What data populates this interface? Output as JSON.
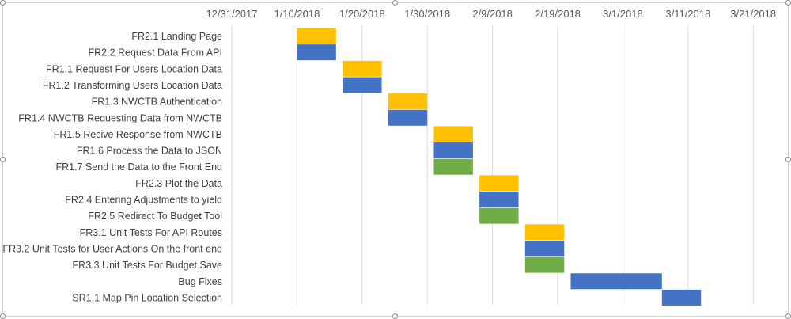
{
  "chart_data": {
    "type": "bar",
    "subtype": "gantt",
    "title": "",
    "xlabel": "",
    "ylabel": "",
    "x_axis_position": "top",
    "grid": true,
    "xlim": [
      "2017-12-31",
      "2018-03-31"
    ],
    "x_ticks": [
      "12/31/2017",
      "1/10/2018",
      "1/20/2018",
      "1/30/2018",
      "2/9/2018",
      "2/19/2018",
      "3/1/2018",
      "3/11/2018",
      "3/21/2018"
    ],
    "tick_day_offsets": [
      0,
      10,
      20,
      30,
      40,
      50,
      60,
      70,
      80
    ],
    "series_colors": {
      "yellow": "#FFC000",
      "blue": "#4472C4",
      "green": "#70AD47"
    },
    "tasks": [
      {
        "name": "FR2.1 Landing Page",
        "start_day": 10,
        "duration": 6,
        "color": "#FFC000"
      },
      {
        "name": "FR2.2 Request Data From API",
        "start_day": 10,
        "duration": 6,
        "color": "#4472C4"
      },
      {
        "name": "FR1.1 Request For Users Location Data",
        "start_day": 17,
        "duration": 6,
        "color": "#FFC000"
      },
      {
        "name": "FR1.2 Transforming Users Location Data",
        "start_day": 17,
        "duration": 6,
        "color": "#4472C4"
      },
      {
        "name": "FR1.3 NWCTB Authentication",
        "start_day": 24,
        "duration": 6,
        "color": "#FFC000"
      },
      {
        "name": "FR1.4 NWCTB Requesting Data from NWCTB",
        "start_day": 24,
        "duration": 6,
        "color": "#4472C4"
      },
      {
        "name": "FR1.5 Recive Response from NWCTB",
        "start_day": 31,
        "duration": 6,
        "color": "#FFC000"
      },
      {
        "name": "FR1.6 Process the Data to JSON",
        "start_day": 31,
        "duration": 6,
        "color": "#4472C4"
      },
      {
        "name": "FR1.7 Send the Data to the Front End",
        "start_day": 31,
        "duration": 6,
        "color": "#70AD47"
      },
      {
        "name": "FR2.3 Plot the Data",
        "start_day": 38,
        "duration": 6,
        "color": "#FFC000"
      },
      {
        "name": "FR2.4 Entering Adjustments to yield",
        "start_day": 38,
        "duration": 6,
        "color": "#4472C4"
      },
      {
        "name": "FR2.5 Redirect To Budget Tool",
        "start_day": 38,
        "duration": 6,
        "color": "#70AD47"
      },
      {
        "name": "FR3.1 Unit Tests For API Routes",
        "start_day": 45,
        "duration": 6,
        "color": "#FFC000"
      },
      {
        "name": "FR3.2 Unit Tests for User Actions On the front end",
        "start_day": 45,
        "duration": 6,
        "color": "#4472C4"
      },
      {
        "name": "FR3.3 Unit Tests For Budget Save",
        "start_day": 45,
        "duration": 6,
        "color": "#70AD47"
      },
      {
        "name": "Bug Fixes",
        "start_day": 52,
        "duration": 14,
        "color": "#4472C4"
      },
      {
        "name": "SR1.1 Map Pin Location Selection",
        "start_day": 66,
        "duration": 6,
        "color": "#4472C4"
      }
    ]
  }
}
